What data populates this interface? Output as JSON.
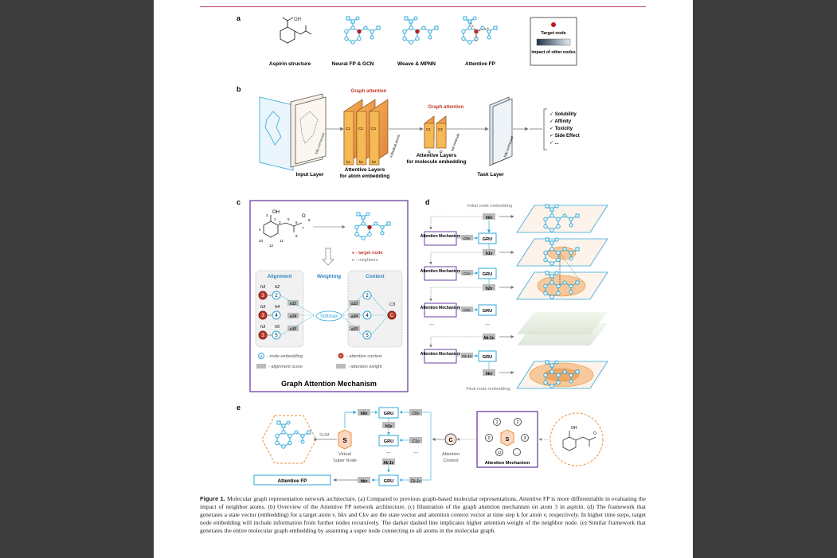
{
  "panel_a": {
    "letter": "a",
    "labels": [
      "Aspirin structure",
      "Neural FP & GCN",
      "Weave & MPNN",
      "Attentive FP"
    ],
    "aspirin_oh": "OH",
    "legend": {
      "target": "Target node",
      "impact": "impact of other nodes"
    }
  },
  "panel_b": {
    "letter": "b",
    "graph_attention": "Graph attention",
    "input_layer": "Input Layer",
    "atom_layers_1": "Attentive Layers",
    "atom_layers_2": "for atom embedding",
    "mol_layers_1": "Attentive Layers",
    "mol_layers_2": "for molecule embedding",
    "task_layer": "Task Layer",
    "fully_connected": "fully connected",
    "individual_atoms": "individual atoms",
    "full_molecule": "full molecule",
    "c_labels": [
      "C1",
      "C2",
      "C3"
    ],
    "k_labels": [
      "k1",
      "k2",
      "k3"
    ],
    "mol_c_labels": [
      "C1",
      "C2"
    ],
    "t_labels": [
      "t1",
      "t2"
    ],
    "outputs": [
      "✓ Solubility",
      "✓ Affinity",
      "✓ Toxicity",
      "✓ Side Effect",
      "✓ ..."
    ]
  },
  "panel_c": {
    "letter": "c",
    "oh": "OH",
    "o": "O",
    "atom_numbers": [
      "1",
      "2",
      "3",
      "4",
      "5",
      "6",
      "7",
      "8",
      "9",
      "10",
      "11",
      "12"
    ],
    "target_node": "v - target node",
    "neighbors": "u - neighbors",
    "alignment": "Alignment",
    "weighting": "Weighting",
    "context": "Context",
    "softmax": "Softmax",
    "h_labels": [
      "h3",
      "h2",
      "h3",
      "h4",
      "h3",
      "h5"
    ],
    "e_labels": [
      "e32",
      "e34",
      "e35"
    ],
    "a_labels": [
      "a32",
      "a34",
      "a35"
    ],
    "ctx_label": "C3",
    "legend_node": "- node embedding",
    "legend_context": "- attention context",
    "legend_align": "- alignment score",
    "legend_weight": "- attention weight",
    "title": "Graph Attention Mechanism"
  },
  "panel_d": {
    "letter": "d",
    "initial": "Initial node embedding",
    "final": "Final node embedding",
    "attention": "Attention Mechanism",
    "gru": "GRU",
    "h_labels": [
      "h0v",
      "h1v",
      "h2v",
      "hk-1v",
      "hkv"
    ],
    "c_labels": [
      "C0v",
      "C1v",
      "C2v",
      "Ck-1v"
    ],
    "dots": "..."
  },
  "panel_e": {
    "letter": "e",
    "sum": "SUM",
    "s": "S",
    "virtual_1": "Virtual",
    "virtual_2": "Super Node",
    "gru": "GRU",
    "c": "C",
    "attention_context_1": "Attention",
    "attention_context_2": "Context",
    "attention_mechanism": "Attention Mechanism",
    "attentive_fp": "Attentive FP",
    "node_numbers": [
      "1",
      "2",
      "0",
      "3",
      "12",
      "..."
    ],
    "dots": "...",
    "oh": "OH",
    "o": "O"
  },
  "caption": {
    "label": "Figure 1.",
    "text": "Molecular graph representation network architecture. (a) Compared to previous graph-based molecular representations, Attentive FP is more differentiable in evaluating the impact of neighbor atoms. (b) Overview of the Attentive FP network architecture. (c) Illustration of the graph attention mechanism on atom 3 in aspirin. (d) The framework that generates a state vector (embedding) for a target atom v. hkv and Ckv are the state vector and attention context vector at time step k for atom v, respectively. In higher time steps, target node embedding will include information from further nodes recursively. The darker dashed line implicates higher attention weight of the neighbor node. (e) Similar framework that generates the entire molecular graph embedding by assuming a super node connecting to all atoms in the molecular graph."
  },
  "colors": {
    "accent_red": "#c0392b",
    "node_blue": "#2ea8d8",
    "purple": "#6b3fa0",
    "orange": "#e8923a",
    "gray": "#777777"
  }
}
